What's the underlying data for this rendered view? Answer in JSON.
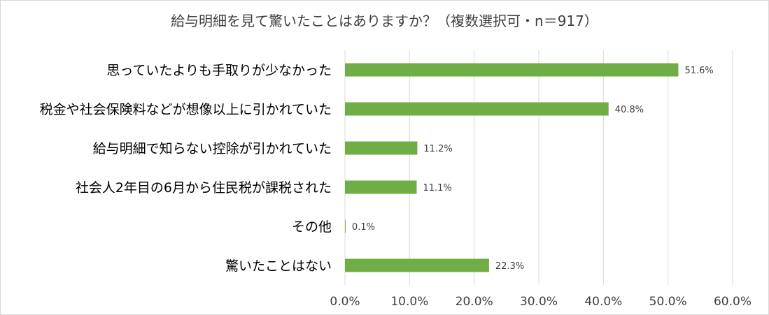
{
  "chart_data": {
    "type": "bar",
    "orientation": "horizontal",
    "title": "給与明細を見て驚いたことはありますか？（複数選択可・n＝917）",
    "categories": [
      "思っていたよりも手取りが少なかった",
      "税金や社会保険料などが想像以上に引かれていた",
      "給与明細で知らない控除が引かれていた",
      "社会人2年目の6月から住民税が課税された",
      "その他",
      "驚いたことはない"
    ],
    "values": [
      51.6,
      40.8,
      11.2,
      11.1,
      0.1,
      22.3
    ],
    "data_labels": [
      "51.6%",
      "40.8%",
      "11.2%",
      "11.1%",
      "0.1%",
      "22.3%"
    ],
    "x_ticks": [
      "0.0%",
      "10.0%",
      "20.0%",
      "30.0%",
      "40.0%",
      "50.0%",
      "60.0%"
    ],
    "xlim": [
      0,
      60
    ],
    "grid": true,
    "bar_color": "#70ad47",
    "grid_color": "#d9d9d9"
  }
}
